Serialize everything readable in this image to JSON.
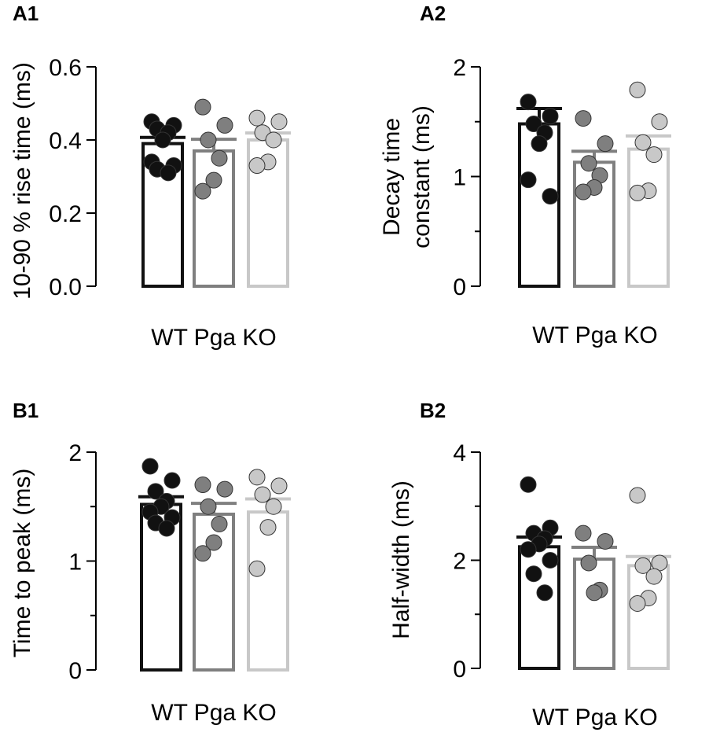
{
  "colors": {
    "wt": "#111111",
    "pga": "#7f7f7f",
    "ko": "#c8c8c8",
    "axis": "#000000"
  },
  "chart_data": [
    {
      "panel": "A1",
      "type": "bar",
      "categories": [
        "WT",
        "Pga",
        "KO"
      ],
      "xlabel": "WT Pga KO",
      "ylabel": "10-90 % rise time (ms)",
      "ylim": [
        0,
        0.6
      ],
      "major_ticks": [
        0,
        0.2,
        0.4,
        0.6
      ],
      "tick_labels": [
        "0.0",
        "0.2",
        "0.4",
        "0.6"
      ],
      "minor_ticks": [],
      "values": [
        0.39,
        0.37,
        0.4
      ],
      "sem": [
        0.017,
        0.032,
        0.019
      ],
      "points": [
        [
          0.45,
          0.44,
          0.43,
          0.42,
          0.4,
          0.34,
          0.33,
          0.32,
          0.31
        ],
        [
          0.49,
          0.44,
          0.4,
          0.35,
          0.29,
          0.26
        ],
        [
          0.46,
          0.45,
          0.42,
          0.4,
          0.34,
          0.33
        ]
      ]
    },
    {
      "panel": "A2",
      "type": "bar",
      "categories": [
        "WT",
        "Pga",
        "KO"
      ],
      "xlabel": "WT Pga KO",
      "ylabel": "Decay time constant (ms)",
      "ylim": [
        0,
        2
      ],
      "major_ticks": [
        0,
        1,
        2
      ],
      "tick_labels": [
        "0",
        "1",
        "2"
      ],
      "minor_ticks": [
        0.5,
        1.5
      ],
      "values": [
        1.48,
        1.13,
        1.25
      ],
      "sem": [
        0.14,
        0.1,
        0.12
      ],
      "points": [
        [
          1.68,
          1.55,
          1.48,
          1.4,
          1.3,
          0.97,
          0.82
        ],
        [
          1.53,
          1.3,
          1.12,
          1.01,
          0.9,
          0.86
        ],
        [
          1.79,
          1.5,
          1.31,
          1.2,
          0.87,
          0.85
        ]
      ]
    },
    {
      "panel": "B1",
      "type": "bar",
      "categories": [
        "WT",
        "Pga",
        "KO"
      ],
      "xlabel": "WT Pga KO",
      "ylabel": "Time to peak (ms)",
      "ylim": [
        0,
        2
      ],
      "major_ticks": [
        0,
        1,
        2
      ],
      "tick_labels": [
        "0",
        "1",
        "2"
      ],
      "minor_ticks": [
        0.5,
        1.5
      ],
      "values": [
        1.52,
        1.43,
        1.45
      ],
      "sem": [
        0.07,
        0.1,
        0.12
      ],
      "points": [
        [
          1.87,
          1.74,
          1.64,
          1.55,
          1.5,
          1.45,
          1.4,
          1.35,
          1.3
        ],
        [
          1.7,
          1.66,
          1.5,
          1.34,
          1.17,
          1.07
        ],
        [
          1.77,
          1.69,
          1.61,
          1.5,
          1.31,
          0.93
        ]
      ]
    },
    {
      "panel": "B2",
      "type": "bar",
      "categories": [
        "WT",
        "Pga",
        "KO"
      ],
      "xlabel": "WT Pga KO",
      "ylabel": "Half-width (ms)",
      "ylim": [
        0,
        4
      ],
      "major_ticks": [
        0,
        2,
        4
      ],
      "tick_labels": [
        "0",
        "2",
        "4"
      ],
      "minor_ticks": [
        1,
        3
      ],
      "values": [
        2.25,
        2.02,
        1.9
      ],
      "sem": [
        0.18,
        0.22,
        0.17
      ],
      "points": [
        [
          3.4,
          2.6,
          2.5,
          2.4,
          2.3,
          2.2,
          2.0,
          1.75,
          1.4
        ],
        [
          2.5,
          2.35,
          1.95,
          1.45,
          1.4
        ],
        [
          3.2,
          1.95,
          1.9,
          1.7,
          1.3,
          1.2
        ]
      ]
    }
  ]
}
